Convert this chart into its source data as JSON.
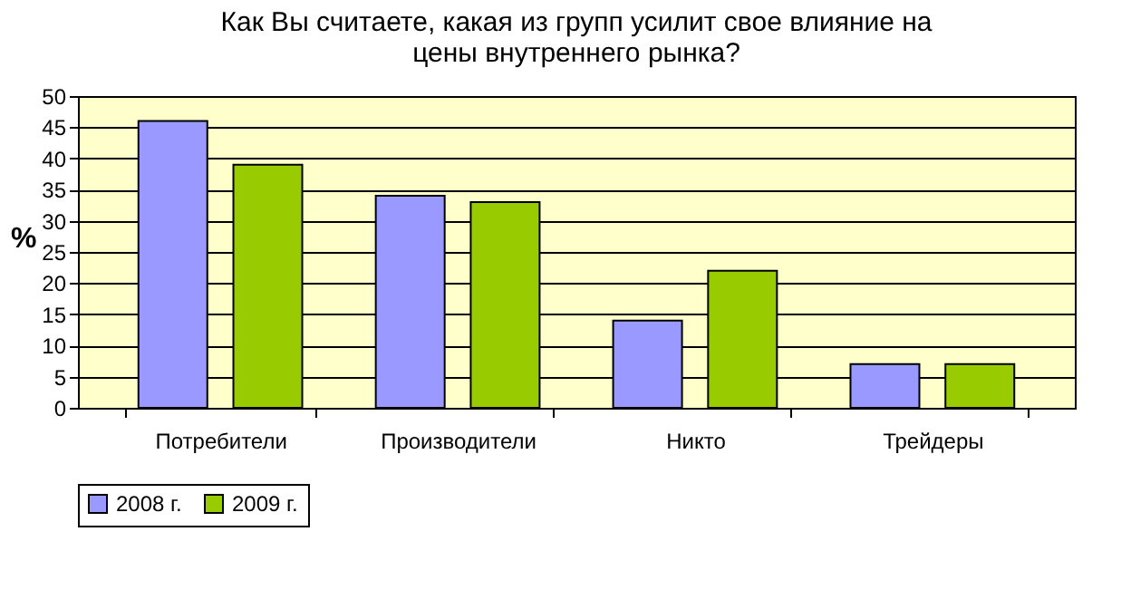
{
  "chart_data": {
    "type": "bar",
    "title": [
      "Как Вы считаете, какая из групп усилит свое влияние на",
      "цены внутреннего рынка?"
    ],
    "ylabel": "%",
    "categories": [
      "Потребители",
      "Производители",
      "Никто",
      "Трейдеры"
    ],
    "series": [
      {
        "name": "2008 г.",
        "color": "#9999ff",
        "values": [
          46,
          34,
          14,
          7
        ]
      },
      {
        "name": "2009 г.",
        "color": "#99cc00",
        "values": [
          39,
          33,
          22,
          7
        ]
      }
    ],
    "ylim": [
      0,
      50
    ],
    "yticks": [
      0,
      5,
      10,
      15,
      20,
      25,
      30,
      35,
      40,
      45,
      50
    ],
    "grid": "y",
    "legend": "bottom"
  }
}
